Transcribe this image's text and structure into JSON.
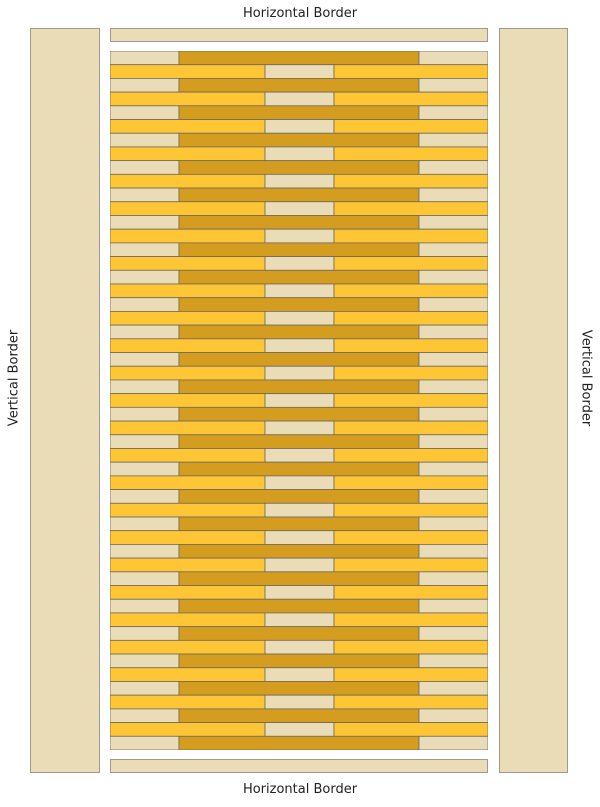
{
  "labels": {
    "top": "Horizontal Border",
    "bottom": "Horizontal Border",
    "left": "Vertical Border",
    "right": "Vertical Border"
  },
  "colors": {
    "border_fill": "#e9dcb6",
    "light": "#e9dcb6",
    "dark_gold": "#d49d20",
    "bright_gold": "#fec634"
  },
  "pattern": {
    "row_count": 51,
    "row_types": [
      "A",
      "B"
    ],
    "rows": {
      "A": [
        "light",
        "dark_gold",
        "dark_gold",
        "dark_gold",
        "light"
      ],
      "B": [
        "bright_gold",
        "bright_gold",
        "light",
        "bright_gold",
        "bright_gold"
      ]
    }
  }
}
